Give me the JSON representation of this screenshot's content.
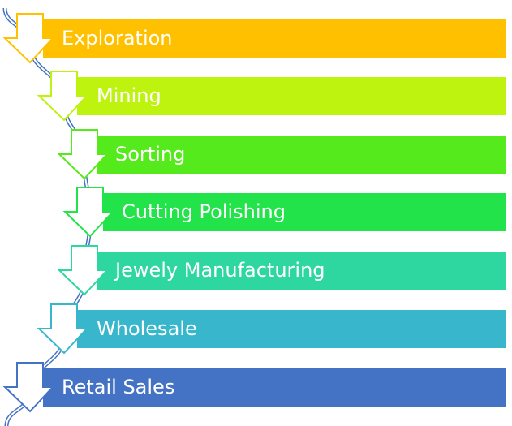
{
  "steps": [
    {
      "label": "Exploration",
      "color": "#FFC000"
    },
    {
      "label": "Mining",
      "color": "#BEF20F"
    },
    {
      "label": "Sorting",
      "color": "#55EA1C"
    },
    {
      "label": "Cutting Polishing",
      "color": "#22E44A"
    },
    {
      "label": "Jewely Manufacturing",
      "color": "#2ED6A0"
    },
    {
      "label": "Wholesale",
      "color": "#37B6CC"
    },
    {
      "label": "Retail Sales",
      "color": "#4472C4"
    }
  ],
  "connector_color": "#4472C4"
}
